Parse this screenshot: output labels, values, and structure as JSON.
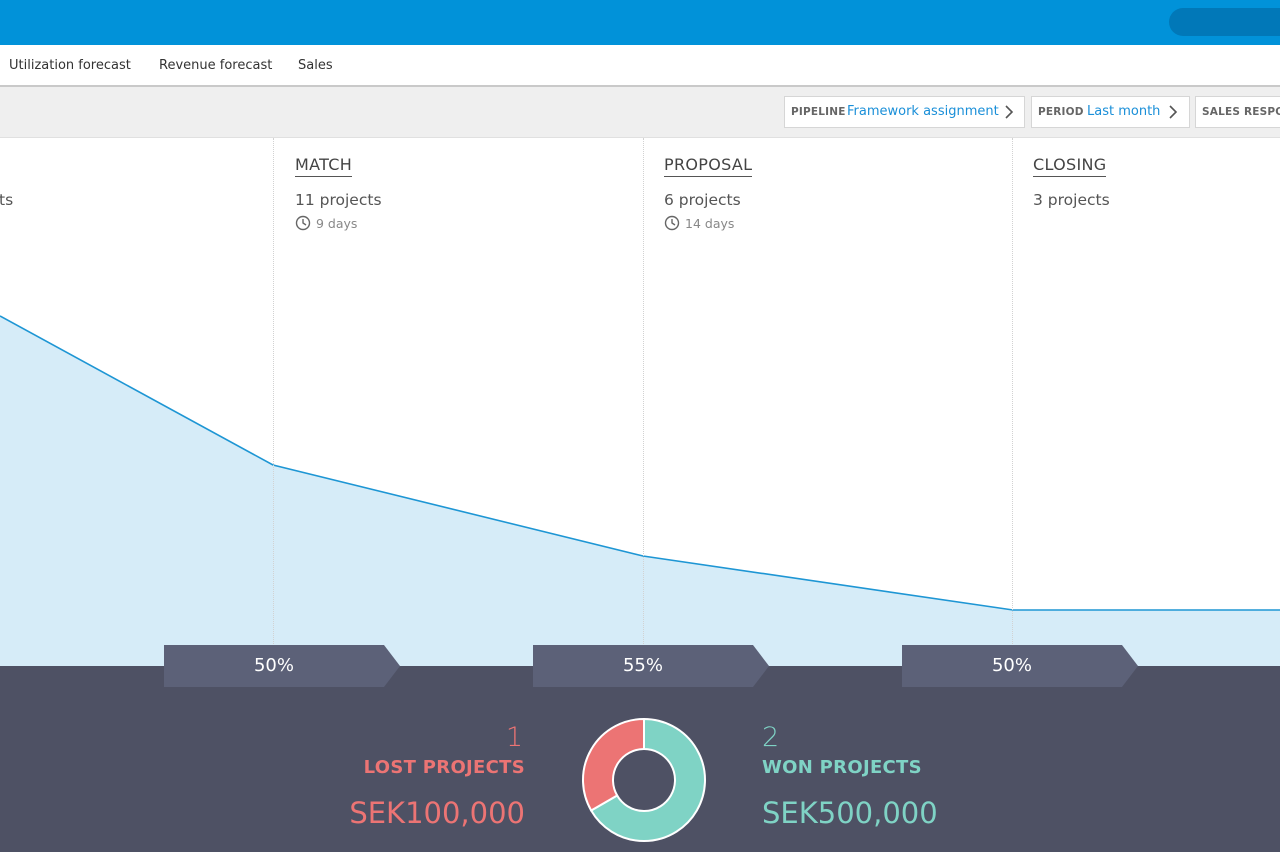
{
  "tabs": [
    {
      "label": "Utilization forecast"
    },
    {
      "label": "Revenue forecast"
    },
    {
      "label": "Sales"
    }
  ],
  "filters": {
    "pipeline": {
      "label": "PIPELINE",
      "value": "Framework assignment"
    },
    "period": {
      "label": "PERIOD",
      "value": "Last month"
    },
    "sales_responsible": {
      "label": "SALES RESPON"
    }
  },
  "stages": [
    {
      "name": "",
      "projects": "ts",
      "days": ""
    },
    {
      "name": "MATCH",
      "projects": "11 projects",
      "days": "9 days"
    },
    {
      "name": "PROPOSAL",
      "projects": "6 projects",
      "days": "14 days"
    },
    {
      "name": "CLOSING",
      "projects": "3 projects",
      "days": ""
    }
  ],
  "conversions": [
    {
      "value": "50%"
    },
    {
      "value": "55%"
    },
    {
      "value": "50%"
    }
  ],
  "summary": {
    "lost": {
      "count": "1",
      "label": "LOST PROJECTS",
      "amount": "SEK100,000"
    },
    "won": {
      "count": "2",
      "label": "WON PROJECTS",
      "amount": "SEK500,000"
    }
  },
  "chart_data": {
    "type": "area",
    "categories": [
      "",
      "MATCH",
      "PROPOSAL",
      "CLOSING"
    ],
    "values": [
      null,
      11,
      6,
      3
    ],
    "donut": {
      "type": "pie",
      "values": [
        1,
        2
      ],
      "labels": [
        "LOST PROJECTS",
        "WON PROJECTS"
      ]
    }
  },
  "colors": {
    "header": "#0192d9",
    "line": "#1e96d4",
    "area": "#d6ecf8",
    "bottom_panel": "#4e5164",
    "conversion_tag": "#5c6178",
    "lost": "#ec7474",
    "won": "#7fd3c5"
  },
  "icons": [
    "chevron-right-icon",
    "clock-icon"
  ]
}
